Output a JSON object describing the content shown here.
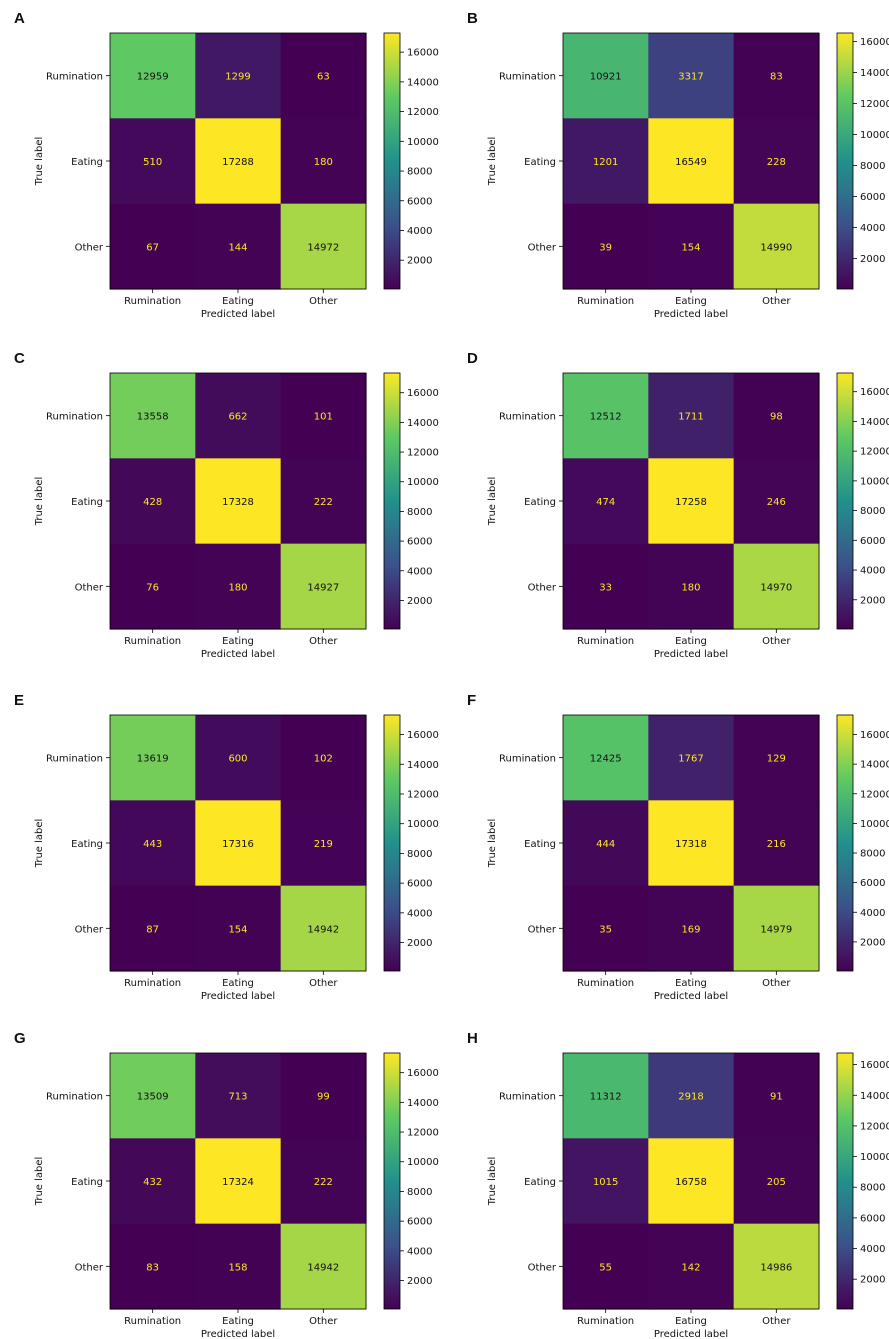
{
  "figure": {
    "cmap": {
      "low": "#440154",
      "q1": "#3b528b",
      "mid": "#21918c",
      "q3": "#5ec962",
      "high": "#fde725"
    },
    "text_on_light": "#111111",
    "text_on_dark": "#fde725"
  },
  "chart_data": [
    {
      "type": "heatmap",
      "panel": "A",
      "xlabel": "Predicted label",
      "ylabel": "True label",
      "categories": [
        "Rumination",
        "Eating",
        "Other"
      ],
      "matrix": [
        [
          12959,
          1299,
          63
        ],
        [
          510,
          17288,
          180
        ],
        [
          67,
          144,
          14972
        ]
      ],
      "colorbar_ticks": [
        2000,
        4000,
        6000,
        8000,
        10000,
        12000,
        14000,
        16000
      ]
    },
    {
      "type": "heatmap",
      "panel": "B",
      "xlabel": "Predicted label",
      "ylabel": "True label",
      "categories": [
        "Rumination",
        "Eating",
        "Other"
      ],
      "matrix": [
        [
          10921,
          3317,
          83
        ],
        [
          1201,
          16549,
          228
        ],
        [
          39,
          154,
          14990
        ]
      ],
      "colorbar_ticks": [
        2000,
        4000,
        6000,
        8000,
        10000,
        12000,
        14000,
        16000
      ]
    },
    {
      "type": "heatmap",
      "panel": "C",
      "xlabel": "Predicted label",
      "ylabel": "True label",
      "categories": [
        "Rumination",
        "Eating",
        "Other"
      ],
      "matrix": [
        [
          13558,
          662,
          101
        ],
        [
          428,
          17328,
          222
        ],
        [
          76,
          180,
          14927
        ]
      ],
      "colorbar_ticks": [
        2000,
        4000,
        6000,
        8000,
        10000,
        12000,
        14000,
        16000
      ]
    },
    {
      "type": "heatmap",
      "panel": "D",
      "xlabel": "Predicted label",
      "ylabel": "True label",
      "categories": [
        "Rumination",
        "Eating",
        "Other"
      ],
      "matrix": [
        [
          12512,
          1711,
          98
        ],
        [
          474,
          17258,
          246
        ],
        [
          33,
          180,
          14970
        ]
      ],
      "colorbar_ticks": [
        2000,
        4000,
        6000,
        8000,
        10000,
        12000,
        14000,
        16000
      ]
    },
    {
      "type": "heatmap",
      "panel": "E",
      "xlabel": "Predicted label",
      "ylabel": "True label",
      "categories": [
        "Rumination",
        "Eating",
        "Other"
      ],
      "matrix": [
        [
          13619,
          600,
          102
        ],
        [
          443,
          17316,
          219
        ],
        [
          87,
          154,
          14942
        ]
      ],
      "colorbar_ticks": [
        2000,
        4000,
        6000,
        8000,
        10000,
        12000,
        14000,
        16000
      ]
    },
    {
      "type": "heatmap",
      "panel": "F",
      "xlabel": "Predicted label",
      "ylabel": "True label",
      "categories": [
        "Rumination",
        "Eating",
        "Other"
      ],
      "matrix": [
        [
          12425,
          1767,
          129
        ],
        [
          444,
          17318,
          216
        ],
        [
          35,
          169,
          14979
        ]
      ],
      "colorbar_ticks": [
        2000,
        4000,
        6000,
        8000,
        10000,
        12000,
        14000,
        16000
      ]
    },
    {
      "type": "heatmap",
      "panel": "G",
      "xlabel": "Predicted label",
      "ylabel": "True label",
      "categories": [
        "Rumination",
        "Eating",
        "Other"
      ],
      "matrix": [
        [
          13509,
          713,
          99
        ],
        [
          432,
          17324,
          222
        ],
        [
          83,
          158,
          14942
        ]
      ],
      "colorbar_ticks": [
        2000,
        4000,
        6000,
        8000,
        10000,
        12000,
        14000,
        16000
      ]
    },
    {
      "type": "heatmap",
      "panel": "H",
      "xlabel": "Predicted label",
      "ylabel": "True label",
      "categories": [
        "Rumination",
        "Eating",
        "Other"
      ],
      "matrix": [
        [
          11312,
          2918,
          91
        ],
        [
          1015,
          16758,
          205
        ],
        [
          55,
          142,
          14986
        ]
      ],
      "colorbar_ticks": [
        2000,
        4000,
        6000,
        8000,
        10000,
        12000,
        14000,
        16000
      ]
    }
  ]
}
